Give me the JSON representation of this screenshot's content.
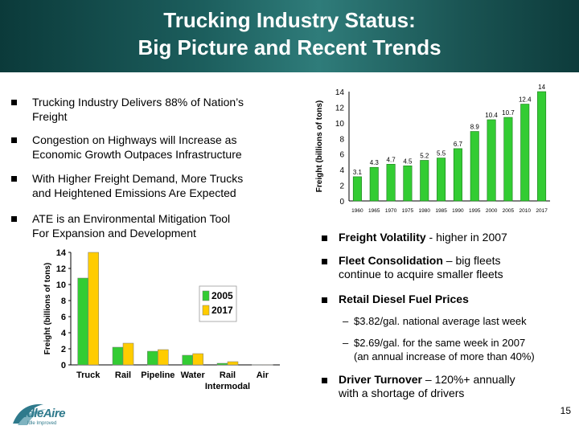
{
  "header": {
    "title_line1": "Trucking Industry Status:",
    "title_line2": "Big Picture and Recent Trends"
  },
  "left_bullets": [
    {
      "line1": "Trucking Industry Delivers 88% of Nation’s",
      "line2": "Freight"
    },
    {
      "line1": "Congestion on Highways will Increase as",
      "line2": "Economic Growth Outpaces Infrastructure"
    },
    {
      "line1": "With Higher Freight Demand, More Trucks",
      "line2": "and Heightened Emissions Are Expected"
    },
    {
      "line1": "ATE is an Environmental Mitigation Tool",
      "line2": "For Expansion and Development"
    }
  ],
  "right_bullets": {
    "b1_bold": "Freight Volatility",
    "b1_rest": " - higher in 2007",
    "b2_bold": "Fleet Consolidation",
    "b2_rest": " – big fleets",
    "b2_line2": "continue to acquire smaller fleets",
    "b3_bold": "Retail Diesel Fuel Prices",
    "sub1": "$3.82/gal. national average last week",
    "sub2_line1": "$2.69/gal. for the same week in 2007",
    "sub2_line2": "(an annual increase of more than 40%)",
    "sub_dash": "–",
    "b4_bold": "Driver Turnover",
    "b4_rest": " – 120%+ annually",
    "b4_line2": "with a shortage of drivers"
  },
  "page_number": "15",
  "logo": {
    "text": "IdleAire",
    "tagline": "Idle Improved"
  },
  "chart_data": [
    {
      "type": "bar",
      "ylabel": "Freight (billions of tons)",
      "ylim": [
        0,
        14
      ],
      "yticks": [
        "0",
        "2",
        "4",
        "6",
        "8",
        "10",
        "12",
        "14"
      ],
      "categories": [
        "1960",
        "1965",
        "1970",
        "1975",
        "1980",
        "1985",
        "1990",
        "1995",
        "2000",
        "2005",
        "2010",
        "2017"
      ],
      "values": [
        3.1,
        4.3,
        4.7,
        4.5,
        5.2,
        5.5,
        6.7,
        8.9,
        10.4,
        10.7,
        12.4,
        14
      ],
      "value_labels": [
        "3.1",
        "4.3",
        "4.7",
        "4.5",
        "5.2",
        "5.5",
        "6.7",
        "8.9",
        "10.4",
        "10.7",
        "12.4",
        "14"
      ],
      "colors": {
        "bar": "#33cc33",
        "bar_edge": "#1a7a1a"
      }
    },
    {
      "type": "bar",
      "ylabel": "Freight (billions of tons)",
      "ylim": [
        0,
        14
      ],
      "yticks": [
        "0",
        "2",
        "4",
        "6",
        "8",
        "10",
        "12",
        "14"
      ],
      "categories": [
        "Truck",
        "Rail",
        "Pipeline",
        "Water",
        "Rail Intermodal",
        "Air"
      ],
      "category_line1": [
        "Truck",
        "Rail",
        "Pipeline",
        "Water",
        "Rail",
        "Air"
      ],
      "category_line2": [
        "",
        "",
        "",
        "",
        "Intermodal",
        ""
      ],
      "series": [
        {
          "name": "2005",
          "values": [
            10.8,
            2.2,
            1.7,
            1.2,
            0.2,
            0.02
          ],
          "color": "#33cc33"
        },
        {
          "name": "2017",
          "values": [
            14,
            2.7,
            1.9,
            1.4,
            0.4,
            0.02
          ],
          "color": "#ffcc00"
        }
      ],
      "legend": "top-right"
    }
  ]
}
